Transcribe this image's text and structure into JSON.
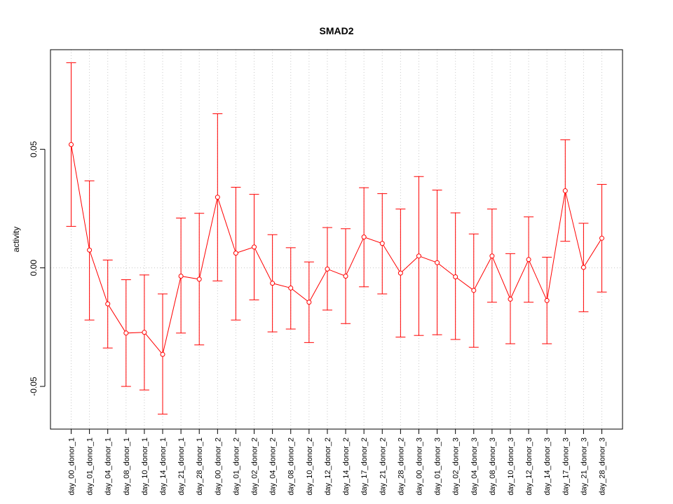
{
  "chart_data": {
    "type": "line",
    "title": "SMAD2",
    "xlabel": "",
    "ylabel": "activity",
    "ylim": [
      -0.068,
      0.092
    ],
    "yticks": [
      -0.05,
      0.0,
      0.05
    ],
    "ytick_labels": [
      "-0.05",
      "0.00",
      "0.05"
    ],
    "grid": true,
    "color": "#ff0000",
    "categories": [
      "day_00_donor_1",
      "day_01_donor_1",
      "day_04_donor_1",
      "day_08_donor_1",
      "day_10_donor_1",
      "day_14_donor_1",
      "day_21_donor_1",
      "day_28_donor_1",
      "day_00_donor_2",
      "day_01_donor_2",
      "day_02_donor_2",
      "day_04_donor_2",
      "day_08_donor_2",
      "day_10_donor_2",
      "day_12_donor_2",
      "day_14_donor_2",
      "day_17_donor_2",
      "day_21_donor_2",
      "day_28_donor_2",
      "day_00_donor_3",
      "day_01_donor_3",
      "day_02_donor_3",
      "day_04_donor_3",
      "day_08_donor_3",
      "day_10_donor_3",
      "day_12_donor_3",
      "day_14_donor_3",
      "day_17_donor_3",
      "day_21_donor_3",
      "day_28_donor_3"
    ],
    "values": [
      0.052,
      0.0075,
      -0.0152,
      -0.0275,
      -0.0272,
      -0.0365,
      -0.0035,
      -0.0048,
      0.0298,
      0.0062,
      0.0088,
      -0.0065,
      -0.0085,
      -0.0145,
      -0.0005,
      -0.0035,
      0.013,
      0.0103,
      -0.0022,
      0.005,
      0.0022,
      -0.0038,
      -0.0095,
      0.005,
      -0.0132,
      0.0035,
      -0.0138,
      0.0325,
      0.0002,
      0.0125
    ],
    "upper": [
      0.0865,
      0.0367,
      0.0033,
      -0.005,
      -0.003,
      -0.011,
      0.021,
      0.023,
      0.065,
      0.034,
      0.031,
      0.014,
      0.0085,
      0.0025,
      0.017,
      0.0165,
      0.0338,
      0.0313,
      0.0248,
      0.0385,
      0.0328,
      0.0232,
      0.0143,
      0.0248,
      0.006,
      0.0215,
      0.0045,
      0.054,
      0.0188,
      0.0352
    ],
    "lower": [
      0.0175,
      -0.022,
      -0.0338,
      -0.05,
      -0.0515,
      -0.0617,
      -0.0275,
      -0.0325,
      -0.0055,
      -0.022,
      -0.0135,
      -0.027,
      -0.0258,
      -0.0315,
      -0.0178,
      -0.0235,
      -0.008,
      -0.011,
      -0.0292,
      -0.0285,
      -0.0282,
      -0.0302,
      -0.0335,
      -0.0145,
      -0.032,
      -0.0145,
      -0.032,
      0.0112,
      -0.0185,
      -0.0102
    ]
  }
}
